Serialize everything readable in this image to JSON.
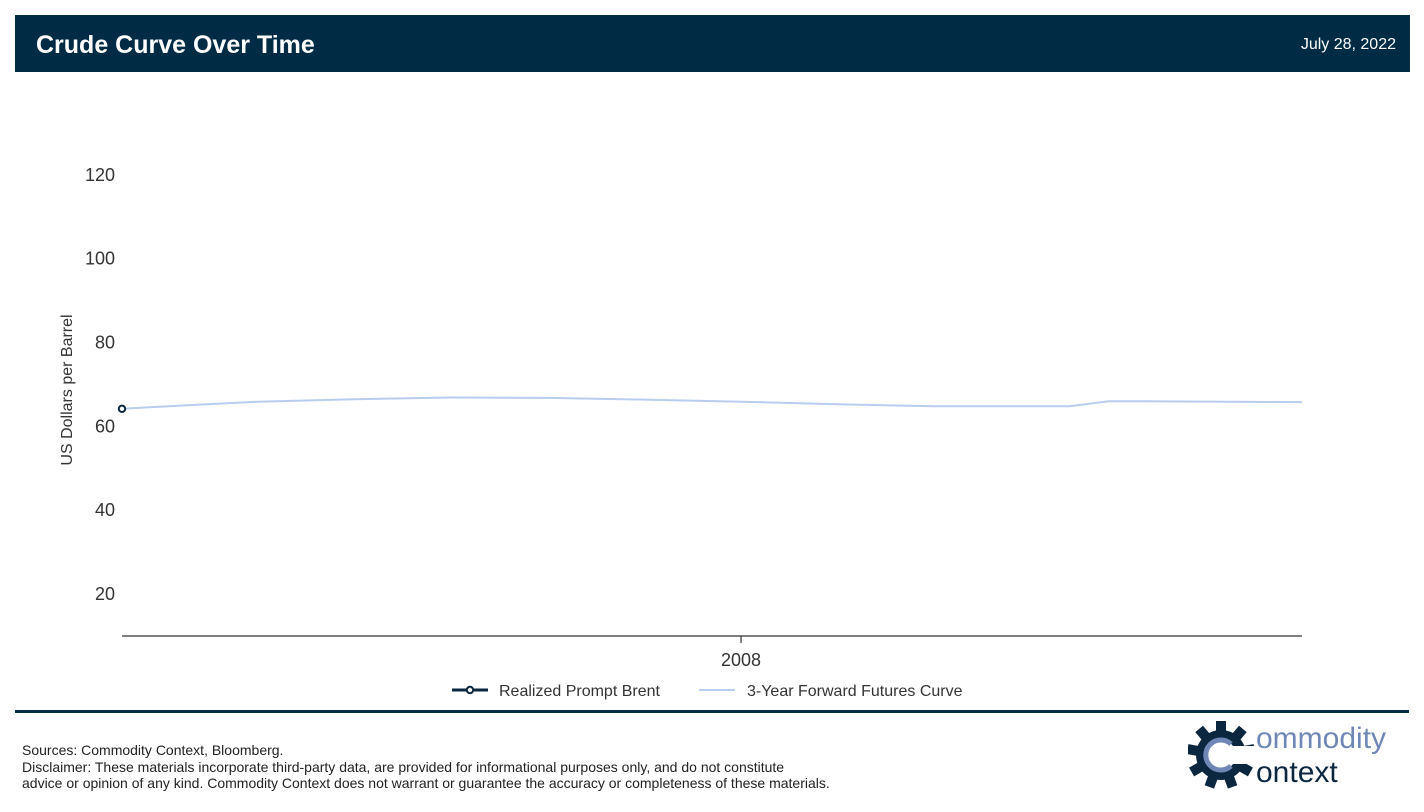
{
  "header": {
    "title": "Crude Curve Over Time",
    "date": "July 28, 2022"
  },
  "chart_data": {
    "type": "line",
    "ylabel": "US Dollars per Barrel",
    "xlabel": "",
    "ylim": [
      10,
      135
    ],
    "yticks": [
      20,
      40,
      60,
      80,
      100,
      120
    ],
    "x_range": [
      2006.4,
      2009.45
    ],
    "xticks": [
      {
        "value": 2008,
        "label": "2008"
      }
    ],
    "grid": false,
    "legend_position": "bottom-center",
    "legend": [
      {
        "name": "Realized Prompt Brent",
        "color": "#0b2740",
        "style": "line-circle"
      },
      {
        "name": "3-Year Forward Futures Curve",
        "color": "#b9cdf0",
        "style": "line"
      }
    ],
    "series": [
      {
        "name": "Realized Prompt Brent",
        "x": [
          2006.4
        ],
        "y": [
          64.2
        ]
      },
      {
        "name": "3-Year Forward Futures Curve",
        "x": [
          2006.4,
          2006.58,
          2006.75,
          2007.0,
          2007.25,
          2007.5,
          2007.75,
          2008.0,
          2008.25,
          2008.5,
          2008.75,
          2008.85,
          2008.95,
          2009.0,
          2009.45
        ],
        "y": [
          64.2,
          65.1,
          65.9,
          66.5,
          66.9,
          66.8,
          66.4,
          65.9,
          65.3,
          64.8,
          64.8,
          64.8,
          66.0,
          66.0,
          65.8
        ]
      }
    ]
  },
  "footer": {
    "sources": "Sources: Commodity Context, Bloomberg.",
    "disclaimer_line1": "Disclaimer: These materials incorporate third-party data, are provided for informational purposes only, and do not constitute",
    "disclaimer_line2": "advice or opinion of any kind. Commodity Context does not warrant or guarantee the accuracy or completeness of these materials."
  },
  "logo": {
    "line1": "ommodity",
    "line2": "ontext",
    "colors": {
      "gear": "#0b2740",
      "text_light": "#6f87b5",
      "text_dark": "#0b2740"
    }
  }
}
